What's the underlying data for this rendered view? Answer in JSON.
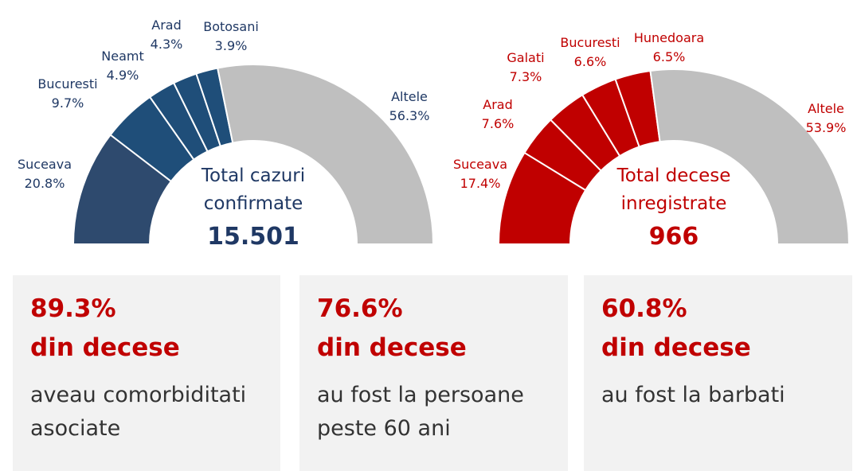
{
  "chart_data": [
    {
      "type": "pie",
      "shape": "half-donut",
      "center_text": [
        "Total cazuri",
        "confirmate"
      ],
      "total": "15.501",
      "colors": {
        "main": "#1f4e79",
        "other": "#bfbfbf",
        "text": "#1f3864"
      },
      "slices": [
        {
          "label": "Suceava",
          "value": 20.8,
          "display": "20.8%"
        },
        {
          "label": "Bucuresti",
          "value": 9.7,
          "display": "9.7%"
        },
        {
          "label": "Neamt",
          "value": 4.9,
          "display": "4.9%"
        },
        {
          "label": "Arad",
          "value": 4.3,
          "display": "4.3%"
        },
        {
          "label": "Botosani",
          "value": 3.9,
          "display": "3.9%"
        },
        {
          "label": "Altele",
          "value": 56.3,
          "display": "56.3%"
        }
      ]
    },
    {
      "type": "pie",
      "shape": "half-donut",
      "center_text": [
        "Total decese",
        "inregistrate"
      ],
      "total": "966",
      "colors": {
        "main": "#c00000",
        "other": "#bfbfbf",
        "text": "#c00000"
      },
      "slices": [
        {
          "label": "Suceava",
          "value": 17.4,
          "display": "17.4%"
        },
        {
          "label": "Arad",
          "value": 7.6,
          "display": "7.6%"
        },
        {
          "label": "Galati",
          "value": 7.3,
          "display": "7.3%"
        },
        {
          "label": "Bucuresti",
          "value": 6.6,
          "display": "6.6%"
        },
        {
          "label": "Hunedoara",
          "value": 6.5,
          "display": "6.5%"
        },
        {
          "label": "Altele",
          "value": 53.9,
          "display": "53.9%"
        }
      ]
    }
  ],
  "stats": [
    {
      "value": "89.3%",
      "subtitle": "din decese",
      "line1": "aveau comorbiditati",
      "line2": "asociate"
    },
    {
      "value": "76.6%",
      "subtitle": "din decese",
      "line1": "au fost la persoane",
      "line2": "peste 60 ani"
    },
    {
      "value": "60.8%",
      "subtitle": "din decese",
      "line1": "au fost la barbati",
      "line2": ""
    }
  ]
}
